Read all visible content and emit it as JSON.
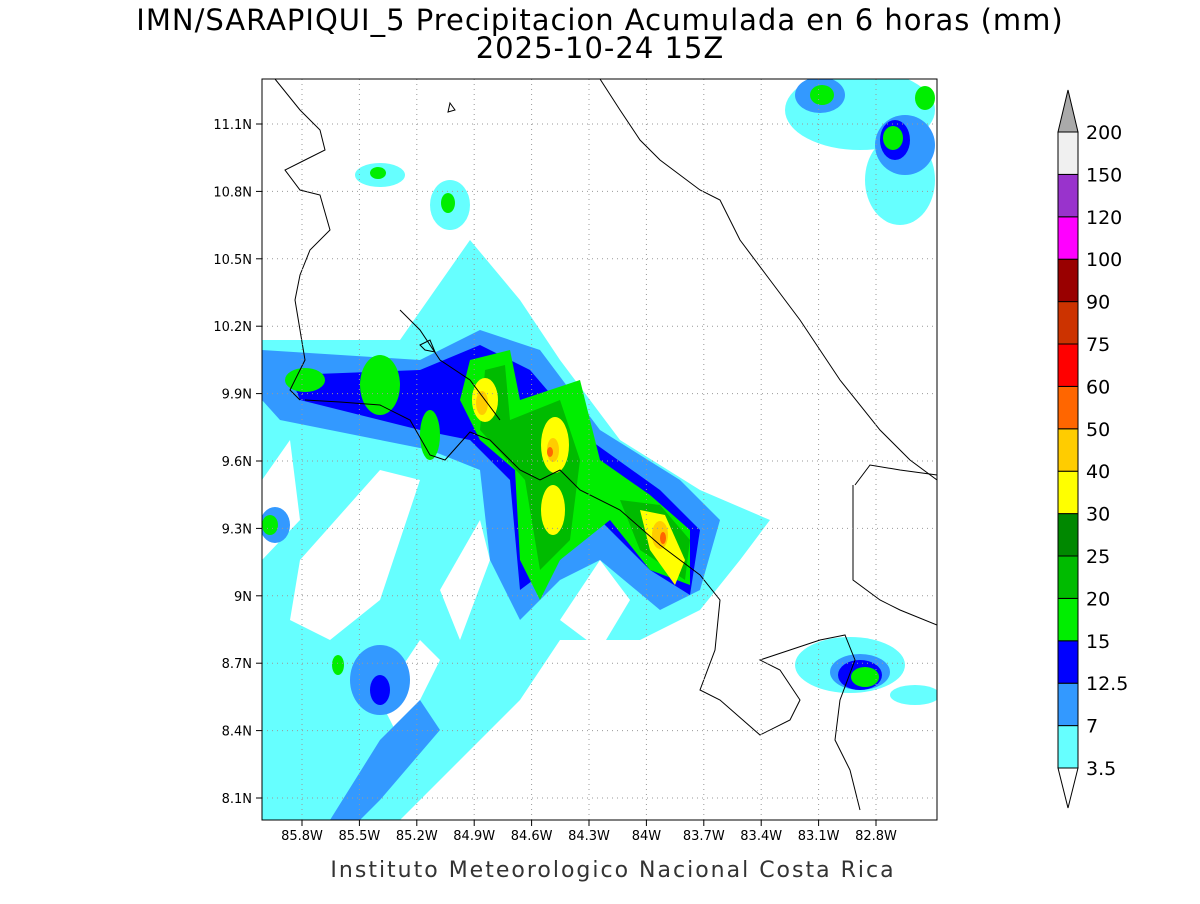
{
  "title": "IMN/SARAPIQUI_5 Precipitacion Acumulada en 6 horas (mm)",
  "subtitle": "2025-10-24 15Z",
  "lat_labels": [
    "11.1N",
    "10.8N",
    "10.5N",
    "10.2N",
    "9.9N",
    "9.6N",
    "9.3N",
    "9N",
    "8.7N",
    "8.4N",
    "8.1N"
  ],
  "lon_labels": [
    "85.8W",
    "85.5W",
    "85.2W",
    "84.9W",
    "84.6W",
    "84.3W",
    "84W",
    "83.7W",
    "83.4W",
    "83.1W",
    "82.8W"
  ],
  "colorbar": {
    "levels": [
      3.5,
      7,
      12.5,
      15,
      20,
      25,
      30,
      40,
      50,
      60,
      75,
      90,
      100,
      120,
      150,
      200
    ],
    "colors": [
      "#ffffff",
      "#66ffff",
      "#3399ff",
      "#0000ff",
      "#00ee00",
      "#00bb00",
      "#008800",
      "#ffff00",
      "#ffcc00",
      "#ff6600",
      "#ff0000",
      "#cc3300",
      "#990000",
      "#ff00ff",
      "#9933cc",
      "#f0f0f0",
      "#aaaaaa"
    ]
  },
  "footer": "Instituto Meteorologico Nacional Costa Rica"
}
